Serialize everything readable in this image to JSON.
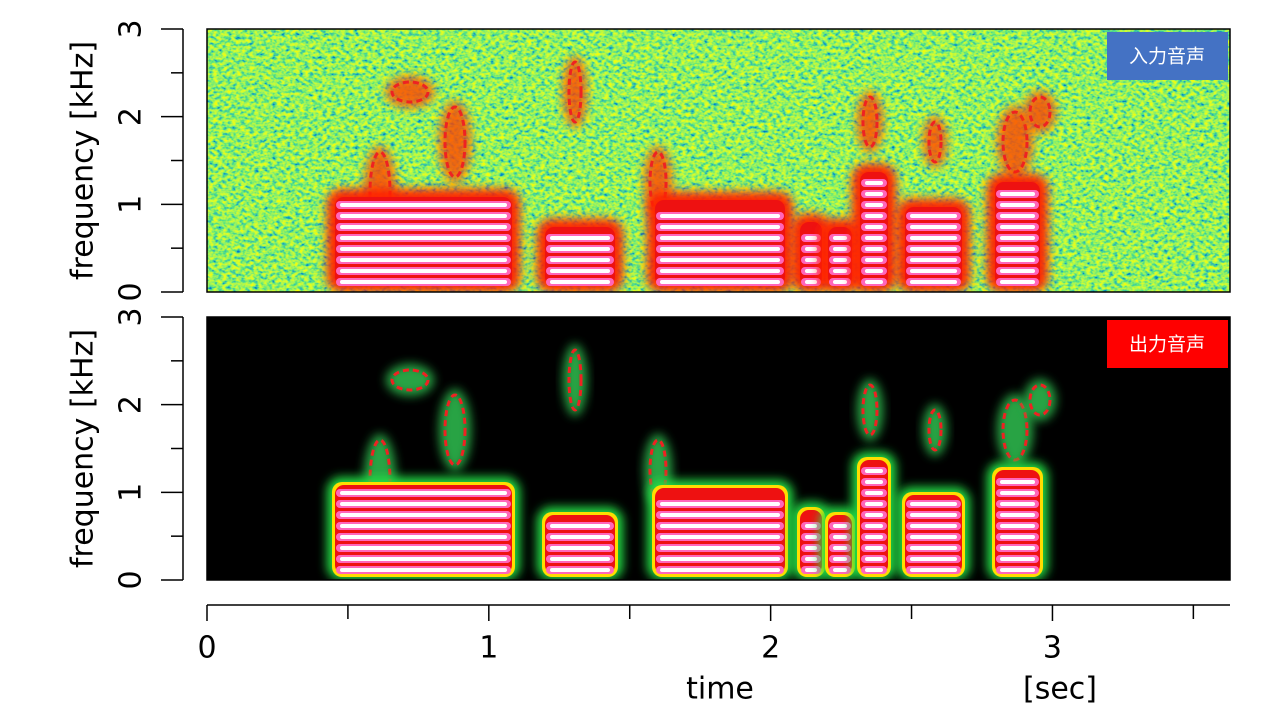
{
  "chart_data": [
    {
      "type": "spectrogram",
      "ylabel": "frequency [kHz]",
      "ylim": [
        0,
        3
      ],
      "yticks": [
        0,
        1,
        2,
        3
      ],
      "yminor_ticks": [
        0.5,
        1.5,
        2.5
      ],
      "label": "入力音声",
      "label_color": "#4472c4"
    },
    {
      "type": "spectrogram",
      "ylabel": "frequency [kHz]",
      "ylim": [
        0,
        3
      ],
      "yticks": [
        0,
        1,
        2,
        3
      ],
      "yminor_ticks": [
        0.5,
        1.5,
        2.5
      ],
      "label": "出力音声",
      "label_color": "#ff0000",
      "background": "#000000",
      "xlabel": "time",
      "x_unit": "[sec]",
      "xlim": [
        0,
        3.63
      ],
      "xticks": [
        0,
        1,
        2,
        3
      ],
      "xminor_ticks": [
        0.5,
        1.5,
        2.5,
        3.5
      ]
    }
  ]
}
